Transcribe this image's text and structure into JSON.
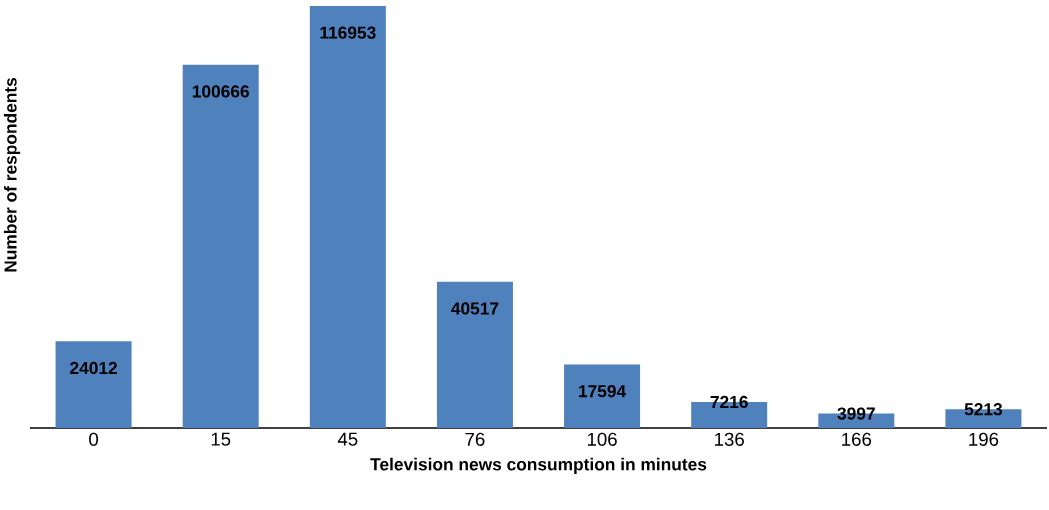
{
  "chart_data": {
    "type": "bar",
    "xlabel": "Television news consumption in minutes",
    "ylabel": "Number of respondents",
    "categories": [
      "0",
      "15",
      "45",
      "76",
      "106",
      "136",
      "166",
      "196"
    ],
    "values": [
      24012,
      100666,
      116953,
      40517,
      17594,
      7216,
      3997,
      5213
    ],
    "color": "#4f81bd",
    "data_labels": true
  }
}
